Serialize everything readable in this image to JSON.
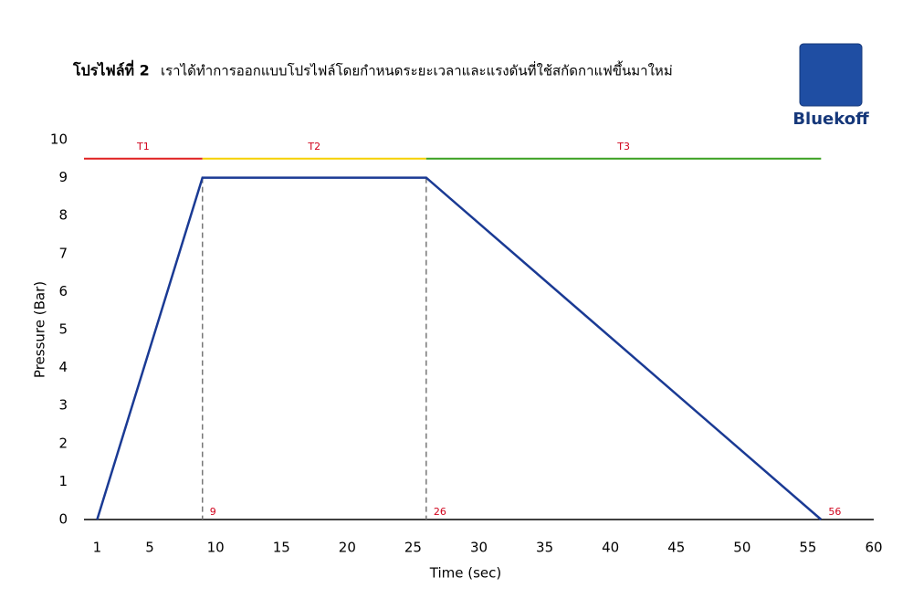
{
  "header": {
    "title_bold": "โปรไฟล์ที่ 2",
    "title": "เราได้ทำการออกแบบโปรไฟล์โดยกำหนดระยะเวลาและแรงดันที่ใช้สกัดกาแฟขึ้นมาใหม่",
    "logo": "Bluekoff"
  },
  "chart_data": {
    "type": "line",
    "x": [
      1,
      9,
      26,
      56
    ],
    "series": [
      {
        "name": "Pressure",
        "color": "#1a3a94",
        "values": [
          0,
          9,
          9,
          0
        ]
      }
    ],
    "xlabel": "Time (sec)",
    "ylabel": "Pressure (Bar)",
    "xlim": [
      0,
      60
    ],
    "ylim": [
      0,
      10
    ],
    "xticks": [
      1,
      5,
      10,
      15,
      20,
      25,
      30,
      35,
      40,
      45,
      50,
      55,
      60
    ],
    "yticks": [
      0,
      1,
      2,
      3,
      4,
      5,
      6,
      7,
      8,
      9,
      10
    ],
    "phases": [
      {
        "name": "T1",
        "start": 0,
        "end": 9,
        "level": 9.5,
        "color": "#e02020"
      },
      {
        "name": "T2",
        "start": 9,
        "end": 26,
        "level": 9.5,
        "color": "#f5d000"
      },
      {
        "name": "T3",
        "start": 26,
        "end": 56,
        "level": 9.5,
        "color": "#3aa020"
      }
    ]
  }
}
